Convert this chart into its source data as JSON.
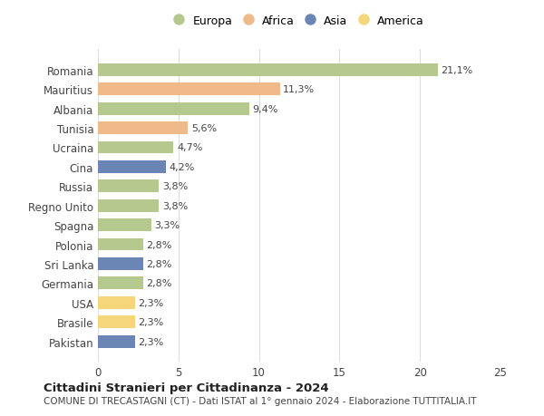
{
  "countries": [
    "Romania",
    "Mauritius",
    "Albania",
    "Tunisia",
    "Ucraina",
    "Cina",
    "Russia",
    "Regno Unito",
    "Spagna",
    "Polonia",
    "Sri Lanka",
    "Germania",
    "USA",
    "Brasile",
    "Pakistan"
  ],
  "values": [
    21.1,
    11.3,
    9.4,
    5.6,
    4.7,
    4.2,
    3.8,
    3.8,
    3.3,
    2.8,
    2.8,
    2.8,
    2.3,
    2.3,
    2.3
  ],
  "labels": [
    "21,1%",
    "11,3%",
    "9,4%",
    "5,6%",
    "4,7%",
    "4,2%",
    "3,8%",
    "3,8%",
    "3,3%",
    "2,8%",
    "2,8%",
    "2,8%",
    "2,3%",
    "2,3%",
    "2,3%"
  ],
  "continents": [
    "Europa",
    "Africa",
    "Europa",
    "Africa",
    "Europa",
    "Asia",
    "Europa",
    "Europa",
    "Europa",
    "Europa",
    "Asia",
    "Europa",
    "America",
    "America",
    "Asia"
  ],
  "colors": {
    "Europa": "#b5c98e",
    "Africa": "#f0b98a",
    "Asia": "#6b85b5",
    "America": "#f5d67a"
  },
  "legend_order": [
    "Europa",
    "Africa",
    "Asia",
    "America"
  ],
  "xlim": [
    0,
    25
  ],
  "xticks": [
    0,
    5,
    10,
    15,
    20,
    25
  ],
  "title": "Cittadini Stranieri per Cittadinanza - 2024",
  "subtitle": "COMUNE DI TRECASTAGNI (CT) - Dati ISTAT al 1° gennaio 2024 - Elaborazione TUTTITALIA.IT",
  "bg_color": "#ffffff",
  "grid_color": "#dddddd"
}
